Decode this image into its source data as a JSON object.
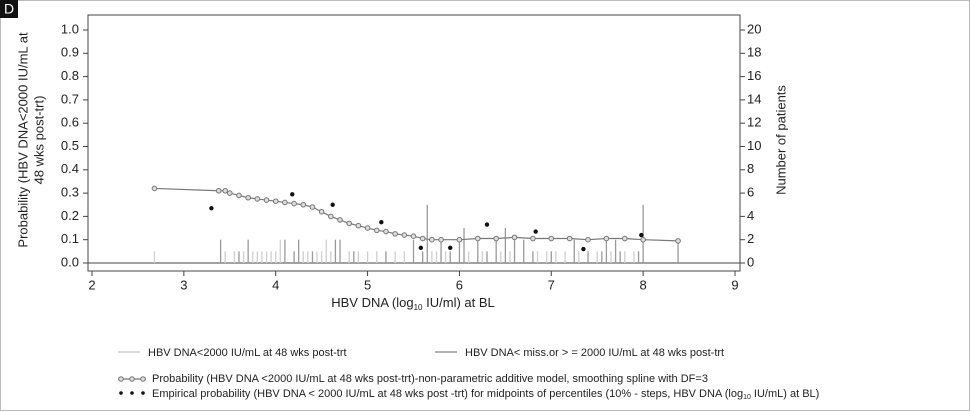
{
  "panel_label": "D",
  "chart_data": {
    "type": "combo",
    "y_label_lines": [
      "Probability (HBV DNA<2000 IU/mL at",
      "48 wks post-trt)"
    ],
    "y2_label": "Number of patients",
    "x_label_parts": [
      "HBV DNA (log",
      "10",
      " IU/ml) at BL"
    ],
    "xlim": [
      2,
      9
    ],
    "xticks": [
      2,
      3,
      4,
      5,
      6,
      7,
      8,
      9
    ],
    "ylim": [
      0,
      1
    ],
    "yticks": [
      {
        "value": 0,
        "label": "0.0"
      },
      0.1,
      0.2,
      0.3,
      0.4,
      0.5,
      0.6,
      0.7,
      0.8,
      0.9,
      {
        "value": 1,
        "label": "1.0"
      }
    ],
    "y2lim": [
      0,
      20
    ],
    "y2ticks": [
      0,
      2,
      4,
      6,
      8,
      10,
      12,
      14,
      16,
      18,
      20
    ],
    "series": [
      {
        "type": "bar",
        "axis": "y2",
        "name": "HBV DNA<2000 IU/mL at 48 wks post-trt",
        "color": "#cfcfcf",
        "x": [
          2.68,
          3.45,
          3.55,
          3.65,
          3.75,
          3.8,
          3.85,
          3.9,
          3.95,
          4.0,
          4.05,
          4.3,
          4.35,
          4.45,
          4.5,
          4.55,
          4.6,
          4.8,
          4.9,
          5.0,
          5.1,
          5.3,
          5.4,
          5.7,
          5.75,
          5.85,
          6.1,
          6.25,
          6.45,
          6.55,
          6.85,
          6.95,
          7.05,
          7.15,
          7.3,
          7.5,
          7.65,
          7.8,
          7.9
        ],
        "values": [
          1,
          1,
          1,
          1,
          1,
          1,
          1,
          1,
          1,
          1,
          2,
          1,
          1,
          1,
          1,
          2,
          1,
          1,
          1,
          1,
          1,
          1,
          1,
          1,
          1,
          1,
          1,
          1,
          1,
          1,
          1,
          1,
          1,
          1,
          1,
          1,
          1,
          1,
          1
        ]
      },
      {
        "type": "bar",
        "axis": "y2",
        "name": "HBV DNA< miss.or > = 2000 IU/mL at 48 wks post-trt",
        "color": "#9a9a9a",
        "x": [
          3.4,
          3.6,
          3.7,
          4.1,
          4.2,
          4.25,
          4.4,
          4.65,
          4.7,
          4.85,
          5.2,
          5.5,
          5.6,
          5.65,
          5.8,
          5.9,
          6.0,
          6.05,
          6.2,
          6.3,
          6.4,
          6.5,
          6.6,
          6.7,
          6.8,
          7.0,
          7.25,
          7.4,
          7.55,
          7.6,
          7.7,
          7.75,
          7.95,
          8.0,
          8.38
        ],
        "values": [
          2,
          1,
          2,
          2,
          1,
          2,
          1,
          2,
          2,
          1,
          1,
          2,
          1,
          5,
          2,
          1,
          2,
          3,
          2,
          1,
          2,
          3,
          2,
          2,
          1,
          1,
          2,
          1,
          1,
          2,
          2,
          1,
          1,
          5,
          2
        ]
      },
      {
        "type": "line",
        "name": "Probability (HBV DNA <2000 IU/mL at 48 wks post-trt)-non-parametric  additive model, smoothing spline with DF=3",
        "color": "#777777",
        "x": [
          2.68,
          3.38,
          3.45,
          3.5,
          3.6,
          3.7,
          3.8,
          3.9,
          4.0,
          4.1,
          4.2,
          4.3,
          4.4,
          4.5,
          4.6,
          4.7,
          4.8,
          4.9,
          5.0,
          5.1,
          5.2,
          5.3,
          5.4,
          5.5,
          5.6,
          5.7,
          5.8,
          6.0,
          6.2,
          6.4,
          6.6,
          6.8,
          7.0,
          7.2,
          7.4,
          7.6,
          7.8,
          8.0,
          8.38
        ],
        "values": [
          0.32,
          0.31,
          0.31,
          0.3,
          0.29,
          0.28,
          0.275,
          0.27,
          0.265,
          0.26,
          0.255,
          0.25,
          0.24,
          0.22,
          0.2,
          0.185,
          0.17,
          0.16,
          0.15,
          0.14,
          0.135,
          0.125,
          0.12,
          0.115,
          0.105,
          0.1,
          0.1,
          0.1,
          0.105,
          0.105,
          0.11,
          0.105,
          0.105,
          0.105,
          0.1,
          0.105,
          0.105,
          0.1,
          0.095
        ]
      },
      {
        "type": "scatter",
        "name_parts": [
          "Empirical probability (HBV DNA < 2000 IU/mL at 48 wks post -trt) for midpoints of percentiles (10% - steps, HBV DNA (log",
          "10",
          " IU/mL) at BL)"
        ],
        "color": "#111111",
        "x": [
          3.3,
          4.18,
          4.62,
          5.15,
          5.58,
          5.9,
          6.3,
          6.83,
          7.35,
          7.98
        ],
        "values": [
          0.235,
          0.295,
          0.25,
          0.175,
          0.065,
          0.065,
          0.165,
          0.135,
          0.06,
          0.12
        ]
      }
    ]
  }
}
